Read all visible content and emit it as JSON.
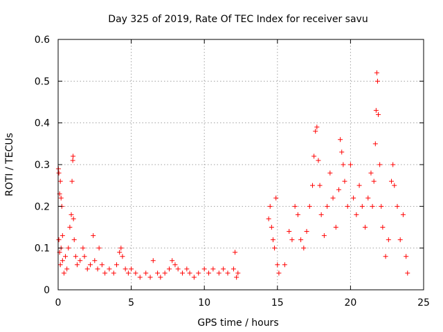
{
  "chart_data": {
    "type": "scatter",
    "title": "Day 325 of 2019, Rate Of TEC Index for receiver savu",
    "xlabel": "GPS time / hours",
    "ylabel": "ROTI / TECUs",
    "xlim": [
      0,
      25
    ],
    "ylim": [
      0,
      0.6
    ],
    "x_ticks": [
      0,
      5,
      10,
      15,
      20,
      25
    ],
    "y_ticks": [
      0,
      0.1,
      0.2,
      0.3,
      0.4,
      0.5,
      0.6
    ],
    "x_tick_labels": [
      "0",
      "5",
      "10",
      "15",
      "20",
      "25"
    ],
    "y_tick_labels": [
      "0",
      "0.1",
      "0.2",
      "0.3",
      "0.4",
      "0.5",
      "0.6"
    ],
    "grid": true,
    "marker": "+",
    "color": "#ff0000",
    "series": [
      {
        "name": "ROTI",
        "points": [
          [
            0.02,
            0.29
          ],
          [
            0.05,
            0.28
          ],
          [
            0.1,
            0.23
          ],
          [
            0.15,
            0.26
          ],
          [
            0.2,
            0.22
          ],
          [
            0.25,
            0.2
          ],
          [
            0.3,
            0.13
          ],
          [
            0.05,
            0.12
          ],
          [
            0.1,
            0.09
          ],
          [
            0.15,
            0.06
          ],
          [
            0.2,
            0.1
          ],
          [
            0.3,
            0.07
          ],
          [
            0.4,
            0.04
          ],
          [
            0.5,
            0.08
          ],
          [
            0.6,
            0.05
          ],
          [
            0.7,
            0.1
          ],
          [
            0.8,
            0.15
          ],
          [
            0.9,
            0.18
          ],
          [
            0.95,
            0.26
          ],
          [
            1.0,
            0.31
          ],
          [
            1.02,
            0.32
          ],
          [
            1.05,
            0.17
          ],
          [
            1.1,
            0.12
          ],
          [
            1.2,
            0.08
          ],
          [
            1.3,
            0.06
          ],
          [
            1.5,
            0.07
          ],
          [
            1.7,
            0.1
          ],
          [
            1.8,
            0.08
          ],
          [
            2.0,
            0.05
          ],
          [
            2.2,
            0.06
          ],
          [
            2.4,
            0.13
          ],
          [
            2.5,
            0.07
          ],
          [
            2.7,
            0.05
          ],
          [
            2.8,
            0.1
          ],
          [
            3.0,
            0.06
          ],
          [
            3.2,
            0.04
          ],
          [
            3.5,
            0.05
          ],
          [
            3.8,
            0.04
          ],
          [
            4.0,
            0.06
          ],
          [
            4.2,
            0.09
          ],
          [
            4.3,
            0.1
          ],
          [
            4.4,
            0.08
          ],
          [
            4.6,
            0.05
          ],
          [
            4.8,
            0.04
          ],
          [
            5.0,
            0.05
          ],
          [
            5.3,
            0.04
          ],
          [
            5.6,
            0.03
          ],
          [
            6.0,
            0.04
          ],
          [
            6.3,
            0.03
          ],
          [
            6.5,
            0.07
          ],
          [
            6.8,
            0.04
          ],
          [
            7.0,
            0.03
          ],
          [
            7.3,
            0.04
          ],
          [
            7.6,
            0.05
          ],
          [
            7.8,
            0.07
          ],
          [
            8.0,
            0.06
          ],
          [
            8.2,
            0.05
          ],
          [
            8.5,
            0.04
          ],
          [
            8.8,
            0.05
          ],
          [
            9.0,
            0.04
          ],
          [
            9.3,
            0.03
          ],
          [
            9.6,
            0.04
          ],
          [
            10.0,
            0.05
          ],
          [
            10.3,
            0.04
          ],
          [
            10.6,
            0.05
          ],
          [
            11.0,
            0.04
          ],
          [
            11.3,
            0.05
          ],
          [
            11.6,
            0.04
          ],
          [
            12.0,
            0.05
          ],
          [
            12.1,
            0.09
          ],
          [
            12.2,
            0.03
          ],
          [
            12.3,
            0.04
          ],
          [
            14.4,
            0.17
          ],
          [
            14.5,
            0.2
          ],
          [
            14.6,
            0.15
          ],
          [
            14.7,
            0.12
          ],
          [
            14.8,
            0.1
          ],
          [
            14.9,
            0.22
          ],
          [
            15.0,
            0.06
          ],
          [
            15.1,
            0.04
          ],
          [
            15.5,
            0.06
          ],
          [
            15.8,
            0.14
          ],
          [
            16.0,
            0.12
          ],
          [
            16.2,
            0.2
          ],
          [
            16.4,
            0.18
          ],
          [
            16.6,
            0.12
          ],
          [
            16.8,
            0.1
          ],
          [
            17.0,
            0.14
          ],
          [
            17.2,
            0.2
          ],
          [
            17.4,
            0.25
          ],
          [
            17.5,
            0.32
          ],
          [
            17.6,
            0.38
          ],
          [
            17.7,
            0.39
          ],
          [
            17.8,
            0.31
          ],
          [
            17.9,
            0.25
          ],
          [
            18.0,
            0.18
          ],
          [
            18.2,
            0.13
          ],
          [
            18.4,
            0.2
          ],
          [
            18.6,
            0.28
          ],
          [
            18.8,
            0.22
          ],
          [
            19.0,
            0.15
          ],
          [
            19.2,
            0.24
          ],
          [
            19.3,
            0.36
          ],
          [
            19.4,
            0.33
          ],
          [
            19.5,
            0.3
          ],
          [
            19.6,
            0.26
          ],
          [
            19.8,
            0.2
          ],
          [
            20.0,
            0.3
          ],
          [
            20.2,
            0.22
          ],
          [
            20.4,
            0.18
          ],
          [
            20.6,
            0.25
          ],
          [
            20.8,
            0.2
          ],
          [
            21.0,
            0.15
          ],
          [
            21.2,
            0.22
          ],
          [
            21.4,
            0.28
          ],
          [
            21.5,
            0.2
          ],
          [
            21.6,
            0.26
          ],
          [
            21.7,
            0.35
          ],
          [
            21.75,
            0.43
          ],
          [
            21.8,
            0.52
          ],
          [
            21.85,
            0.5
          ],
          [
            21.9,
            0.42
          ],
          [
            22.0,
            0.3
          ],
          [
            22.1,
            0.2
          ],
          [
            22.2,
            0.15
          ],
          [
            22.4,
            0.08
          ],
          [
            22.6,
            0.12
          ],
          [
            22.8,
            0.26
          ],
          [
            22.9,
            0.3
          ],
          [
            23.0,
            0.25
          ],
          [
            23.2,
            0.2
          ],
          [
            23.4,
            0.12
          ],
          [
            23.6,
            0.18
          ],
          [
            23.8,
            0.08
          ],
          [
            23.9,
            0.04
          ]
        ]
      }
    ]
  }
}
